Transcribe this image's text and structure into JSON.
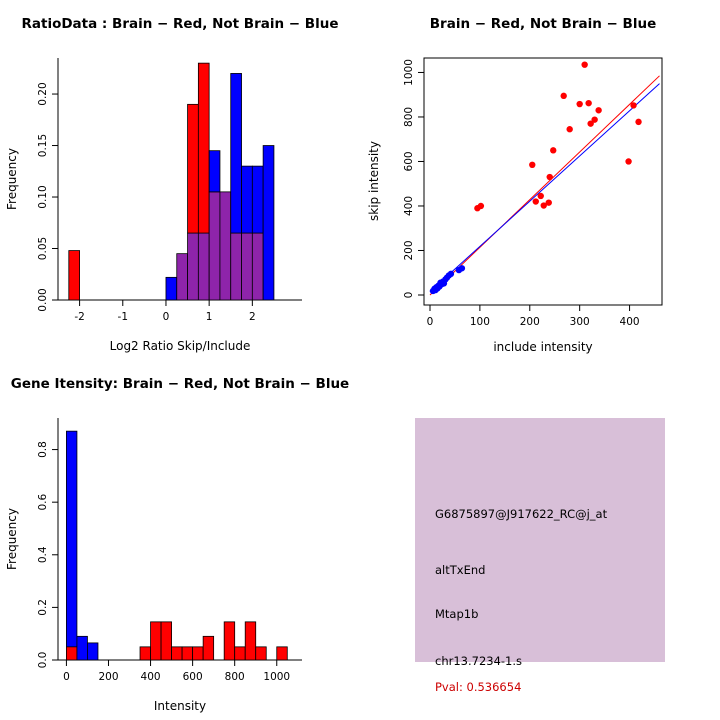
{
  "page": {
    "background": "#FFFFFF"
  },
  "chart_data": [
    {
      "id": "ratio_histogram",
      "type": "bar",
      "title": "RatioData : Brain − Red, Not Brain − Blue",
      "xlabel": "Log2 Ratio Skip/Include",
      "ylabel": "Frequency",
      "xlim": [
        -2.5,
        3.15
      ],
      "ylim": [
        0,
        0.235
      ],
      "grid": false,
      "xticks": [
        [
          -2,
          "-2"
        ],
        [
          -1,
          "-1"
        ],
        [
          0,
          "0"
        ],
        [
          1,
          "1"
        ],
        [
          2,
          "2"
        ]
      ],
      "yticks": [
        [
          0,
          "0.00"
        ],
        [
          0.05,
          "0.05"
        ],
        [
          0.1,
          "0.10"
        ],
        [
          0.15,
          "0.15"
        ],
        [
          0.2,
          "0.20"
        ]
      ],
      "bin_start": -2.25,
      "bin_width": 0.25,
      "overlap_mode": "blend",
      "overlap_color": "#8E24AA",
      "series": [
        {
          "name": "Brain",
          "color": "#FF0000",
          "heights": [
            0.048,
            0,
            0,
            0,
            0,
            0,
            0,
            0,
            0,
            0,
            0.045,
            0.19,
            0.23,
            0.105,
            0.105,
            0.065,
            0.065,
            0.065,
            0
          ]
        },
        {
          "name": "Not Brain",
          "color": "#0000FF",
          "heights": [
            0,
            0,
            0,
            0,
            0,
            0,
            0,
            0,
            0,
            0.022,
            0.045,
            0.065,
            0.065,
            0.145,
            0.105,
            0.22,
            0.13,
            0.13,
            0.15
          ]
        }
      ]
    },
    {
      "id": "intensity_scatter",
      "type": "scatter",
      "title": "Brain − Red, Not Brain − Blue",
      "xlabel": "include intensity",
      "ylabel": "skip intensity",
      "xlim": [
        -12,
        465
      ],
      "ylim": [
        -45,
        1065
      ],
      "grid": false,
      "xticks": [
        [
          0,
          "0"
        ],
        [
          100,
          "100"
        ],
        [
          200,
          "200"
        ],
        [
          300,
          "300"
        ],
        [
          400,
          "400"
        ]
      ],
      "yticks": [
        [
          0,
          "0"
        ],
        [
          200,
          "200"
        ],
        [
          400,
          "400"
        ],
        [
          600,
          "600"
        ],
        [
          800,
          "800"
        ],
        [
          1000,
          "1000"
        ]
      ],
      "series": [
        {
          "name": "Brain",
          "color": "#FF0000",
          "points": [
            [
              95,
              390
            ],
            [
              102,
              400
            ],
            [
              205,
              585
            ],
            [
              212,
              420
            ],
            [
              222,
              445
            ],
            [
              228,
              402
            ],
            [
              238,
              415
            ],
            [
              240,
              530
            ],
            [
              247,
              650
            ],
            [
              268,
              895
            ],
            [
              280,
              745
            ],
            [
              300,
              858
            ],
            [
              310,
              1035
            ],
            [
              318,
              862
            ],
            [
              322,
              770
            ],
            [
              330,
              788
            ],
            [
              338,
              830
            ],
            [
              398,
              600
            ],
            [
              408,
              852
            ],
            [
              418,
              778
            ]
          ]
        },
        {
          "name": "Not Brain",
          "color": "#0000FF",
          "points": [
            [
              6,
              18
            ],
            [
              9,
              28
            ],
            [
              11,
              22
            ],
            [
              13,
              35
            ],
            [
              15,
              30
            ],
            [
              17,
              42
            ],
            [
              19,
              38
            ],
            [
              21,
              55
            ],
            [
              23,
              48
            ],
            [
              26,
              60
            ],
            [
              28,
              52
            ],
            [
              31,
              70
            ],
            [
              34,
              78
            ],
            [
              38,
              88
            ],
            [
              42,
              95
            ],
            [
              58,
              112
            ],
            [
              64,
              120
            ]
          ]
        }
      ],
      "lines": [
        {
          "name": "brain-fit-line",
          "color": "#FF0000",
          "x1": 0,
          "y1": 0,
          "x2": 460,
          "y2": 985
        },
        {
          "name": "notbrain-fit-line",
          "color": "#0000FF",
          "x1": 0,
          "y1": 15,
          "x2": 460,
          "y2": 950
        }
      ]
    },
    {
      "id": "gene_intensity_histogram",
      "type": "bar",
      "title": "Gene Itensity: Brain − Red, Not Brain − Blue",
      "xlabel": "Intensity",
      "ylabel": "Frequency",
      "xlim": [
        -40,
        1120
      ],
      "ylim": [
        0,
        0.92
      ],
      "grid": false,
      "xticks": [
        [
          0,
          "0"
        ],
        [
          200,
          "200"
        ],
        [
          400,
          "400"
        ],
        [
          600,
          "600"
        ],
        [
          800,
          "800"
        ],
        [
          1000,
          "1000"
        ]
      ],
      "yticks": [
        [
          0,
          "0.0"
        ],
        [
          0.2,
          "0.2"
        ],
        [
          0.4,
          "0.4"
        ],
        [
          0.6,
          "0.6"
        ],
        [
          0.8,
          "0.8"
        ]
      ],
      "bin_start": 0,
      "bin_width": 50,
      "overlap_mode": "layered",
      "series": [
        {
          "name": "Not Brain",
          "color": "#0000FF",
          "heights": [
            0.87,
            0.09,
            0.065,
            0,
            0,
            0,
            0,
            0,
            0,
            0,
            0,
            0,
            0,
            0,
            0,
            0,
            0,
            0,
            0,
            0,
            0
          ]
        },
        {
          "name": "Brain",
          "color": "#FF0000",
          "heights": [
            0.05,
            0,
            0,
            0,
            0,
            0,
            0,
            0.05,
            0.145,
            0.145,
            0.05,
            0.05,
            0.05,
            0.09,
            0,
            0.145,
            0.05,
            0.145,
            0.05,
            0,
            0.05
          ]
        }
      ]
    }
  ],
  "info_panel": {
    "background": "#D8BFD8",
    "lines": [
      {
        "text": "G6875897@J917622_RC@j_at",
        "color": "#000000"
      },
      {
        "text": "altTxEnd",
        "color": "#000000"
      },
      {
        "text": "Mtap1b",
        "color": "#000000"
      },
      {
        "text": "chr13.7234-1.s",
        "color": "#000000"
      },
      {
        "text": "Pval: 0.536654",
        "color": "#CC0000"
      }
    ]
  }
}
